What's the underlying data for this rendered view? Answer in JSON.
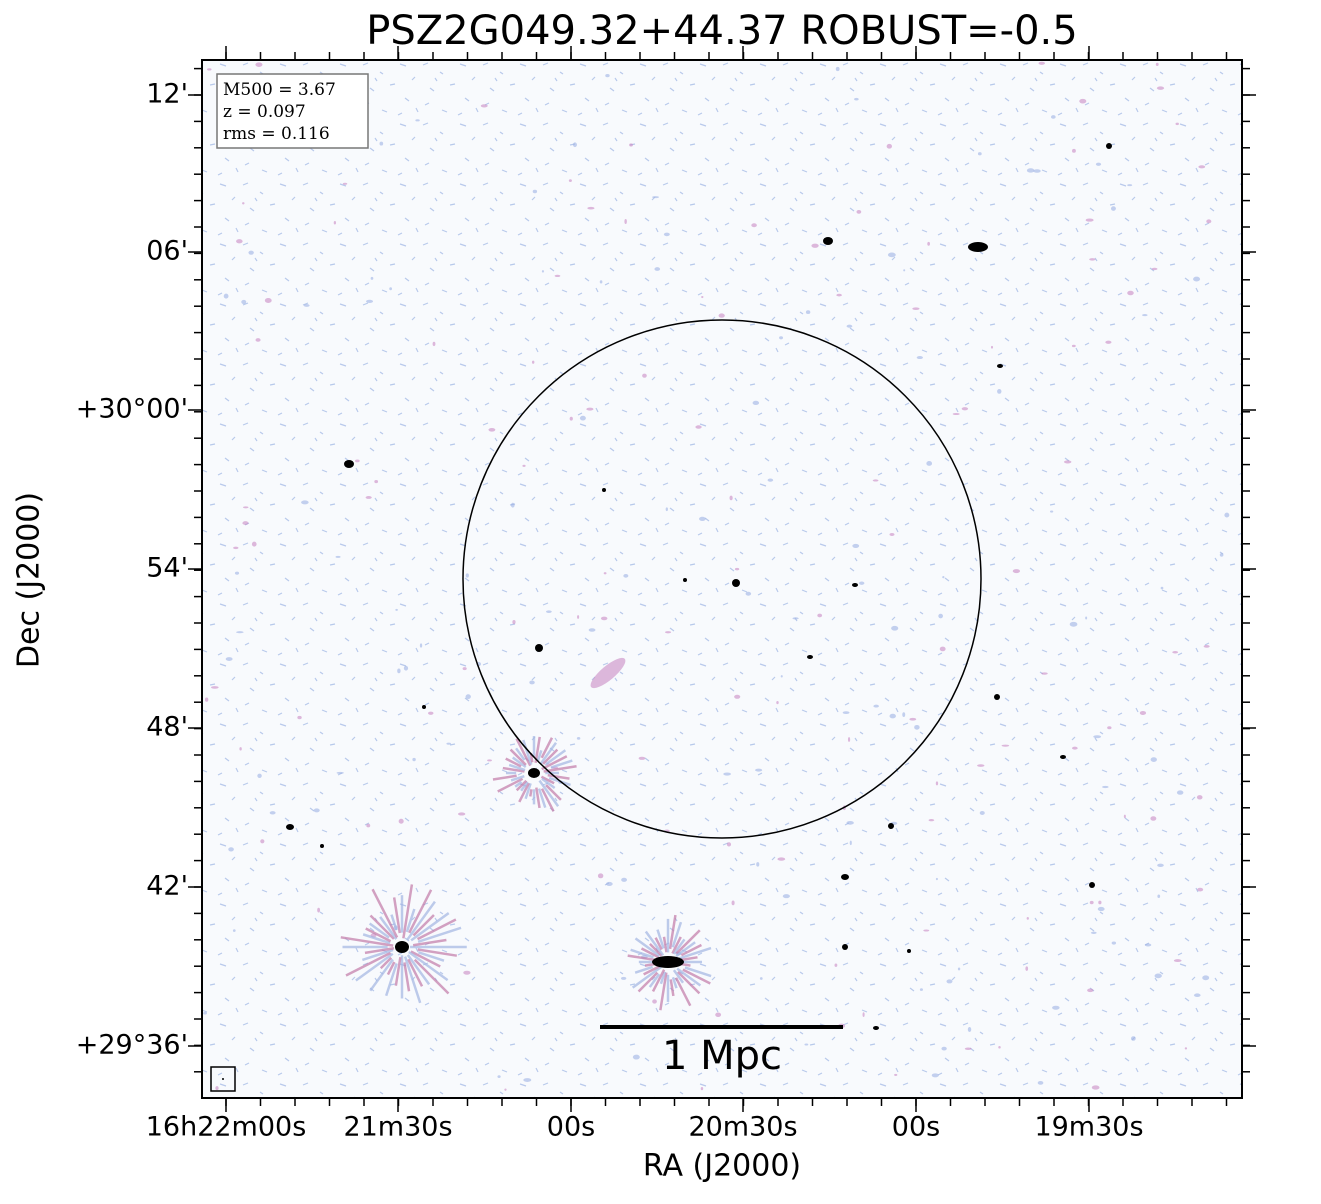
{
  "title": "PSZ2G049.32+44.37 ROBUST=-0.5",
  "info_box": [
    "M500 = 3.67",
    "z = 0.097",
    "rms = 0.116"
  ],
  "x_axis": {
    "label": "RA (J2000)",
    "tick_labels": [
      "16h22m00s",
      "21m30s",
      "00s",
      "20m30s",
      "00s",
      "19m30s"
    ]
  },
  "y_axis": {
    "label": "Dec (J2000)",
    "tick_labels": [
      "12'",
      "06'",
      "+30°00'",
      "54'",
      "48'",
      "42'",
      "+29°36'"
    ]
  },
  "scale_bar": {
    "label": "1 Mpc"
  }
}
